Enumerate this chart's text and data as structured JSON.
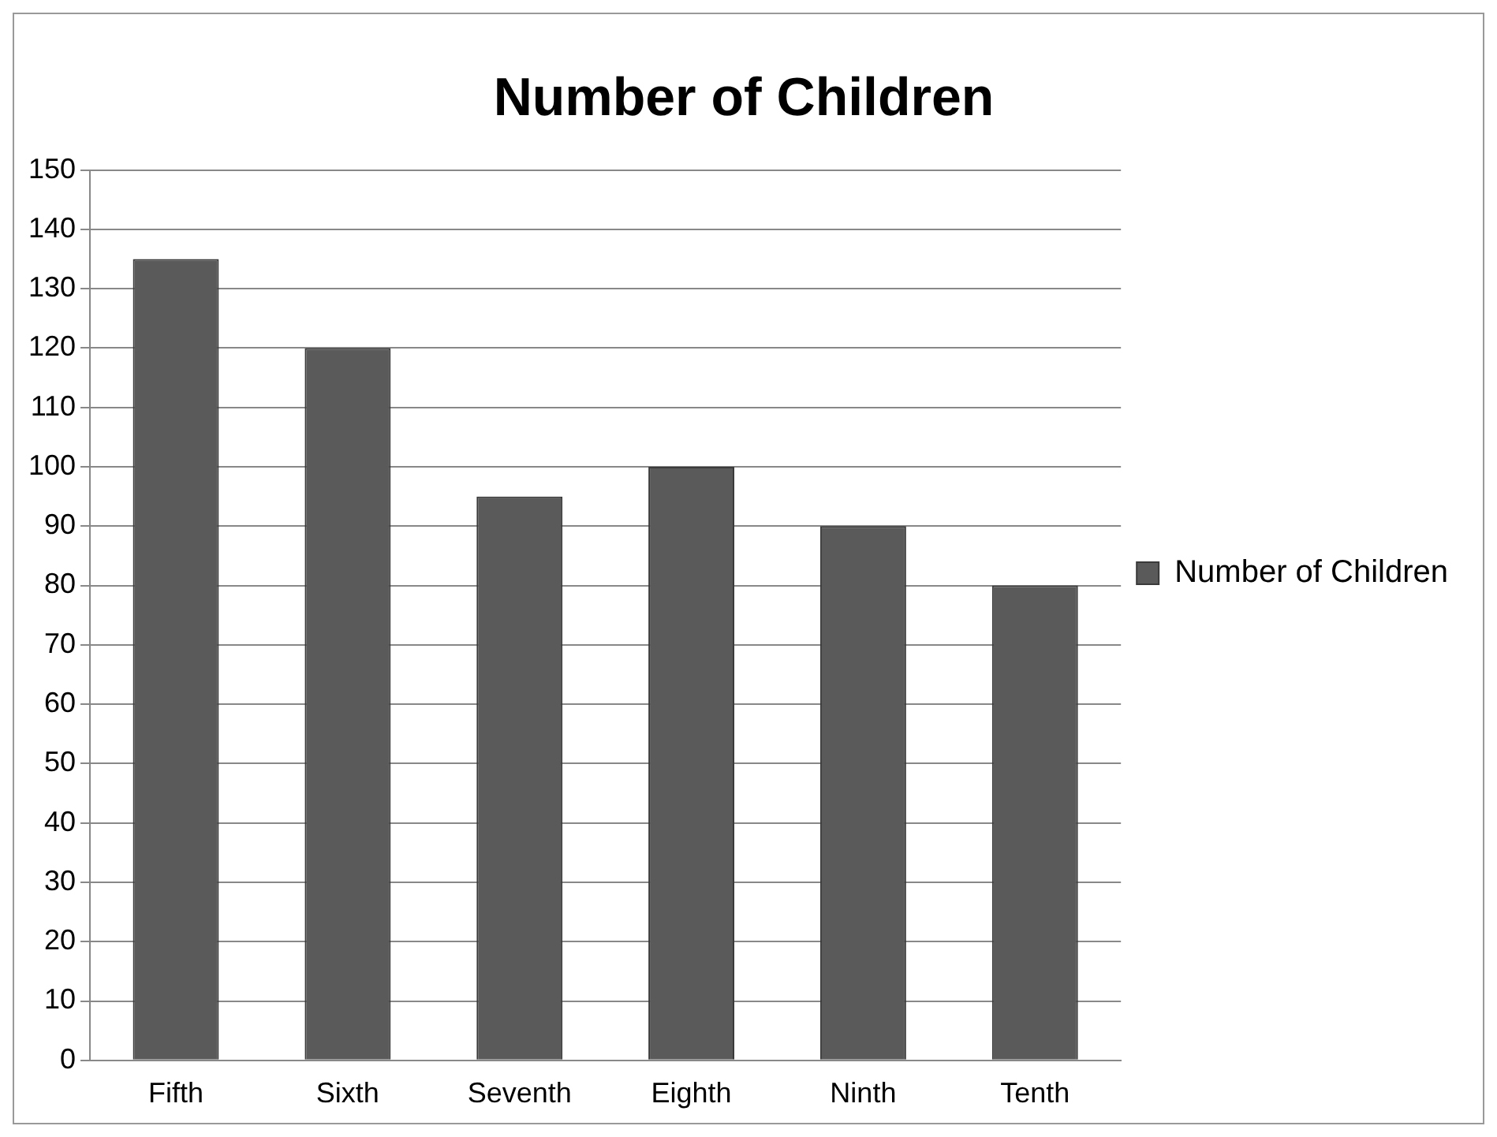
{
  "chart_data": {
    "type": "bar",
    "title": "Number of Children",
    "categories": [
      "Fifth",
      "Sixth",
      "Seventh",
      "Eighth",
      "Ninth",
      "Tenth"
    ],
    "series": [
      {
        "name": "Number of Children",
        "color": "#5a5a5a",
        "values": [
          135,
          120,
          95,
          100,
          90,
          80
        ]
      }
    ],
    "ylim": [
      0,
      150
    ],
    "yticks": [
      0,
      10,
      20,
      30,
      40,
      50,
      60,
      70,
      80,
      90,
      100,
      110,
      120,
      130,
      140,
      150
    ],
    "grid": "y",
    "legend": "right"
  }
}
